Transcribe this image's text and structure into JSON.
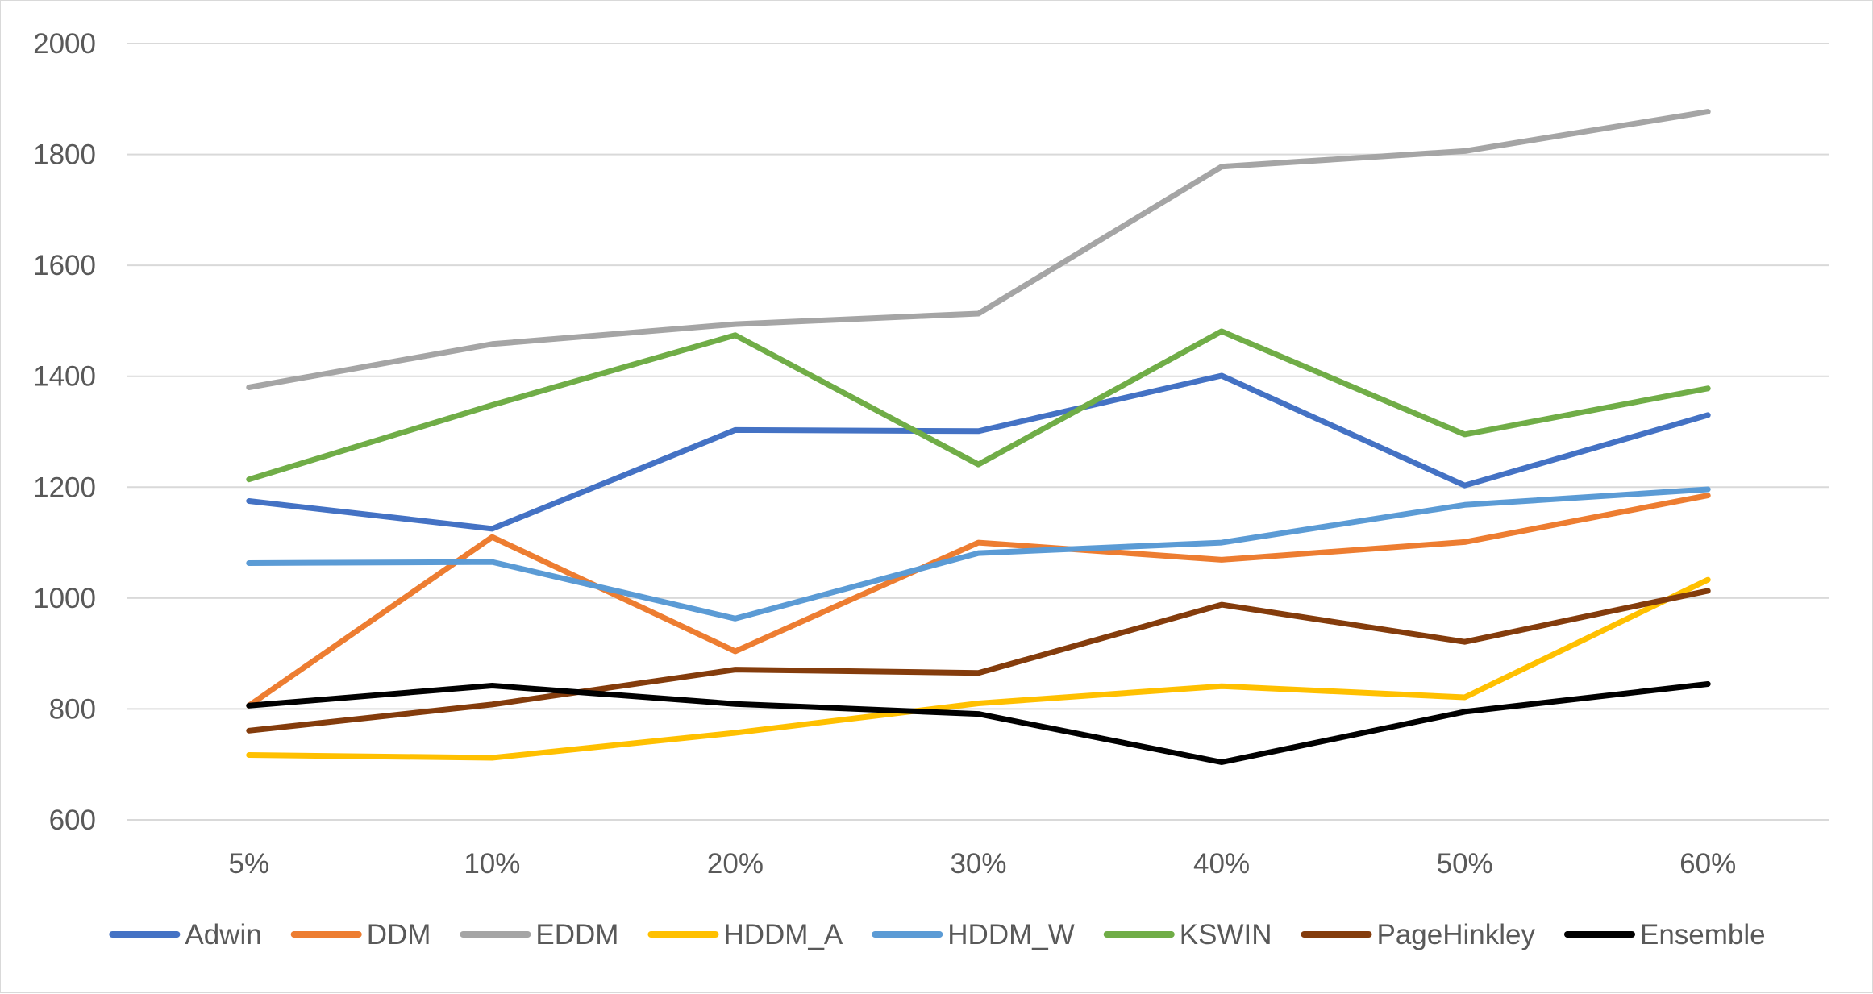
{
  "chart_data": {
    "type": "line",
    "title": "",
    "xlabel": "",
    "ylabel": "",
    "categories": [
      "5%",
      "10%",
      "20%",
      "30%",
      "40%",
      "50%",
      "60%"
    ],
    "ylim": [
      600,
      2000
    ],
    "yticks": [
      600,
      800,
      1000,
      1200,
      1400,
      1600,
      1800,
      2000
    ],
    "grid": "horizontal",
    "legend": "bottom",
    "series": [
      {
        "name": "Adwin",
        "color": "#4472C4",
        "values": [
          1175,
          1125,
          1303,
          1301,
          1401,
          1203,
          1330
        ]
      },
      {
        "name": "DDM",
        "color": "#ED7D31",
        "values": [
          806,
          1110,
          904,
          1100,
          1069,
          1101,
          1185
        ]
      },
      {
        "name": "EDDM",
        "color": "#A5A5A5",
        "values": [
          1380,
          1458,
          1494,
          1513,
          1778,
          1806,
          1877
        ]
      },
      {
        "name": "HDDM_A",
        "color": "#FFC000",
        "values": [
          717,
          712,
          757,
          810,
          841,
          821,
          1033
        ]
      },
      {
        "name": "HDDM_W",
        "color": "#5B9BD5",
        "values": [
          1063,
          1065,
          963,
          1081,
          1100,
          1168,
          1196
        ]
      },
      {
        "name": "KSWIN",
        "color": "#70AD47",
        "values": [
          1214,
          1348,
          1474,
          1241,
          1481,
          1295,
          1378
        ]
      },
      {
        "name": "PageHinkley",
        "color": "#843C0C",
        "values": [
          761,
          808,
          871,
          865,
          988,
          921,
          1013
        ]
      },
      {
        "name": "Ensemble",
        "color": "#000000",
        "values": [
          806,
          842,
          809,
          791,
          704,
          795,
          845
        ]
      }
    ]
  }
}
